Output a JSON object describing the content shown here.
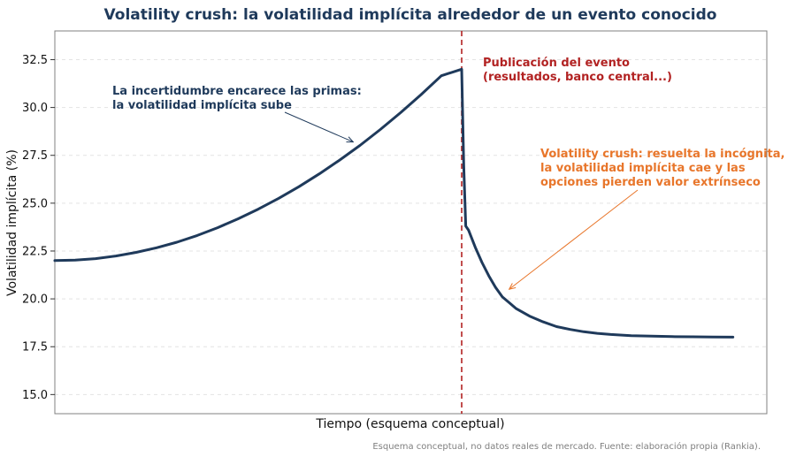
{
  "chart_data": {
    "type": "line",
    "title": "Volatility crush: la volatilidad implícita alrededor de un evento conocido",
    "xlabel": "Tiempo (esquema conceptual)",
    "ylabel": "Volatilidad implícita (%)",
    "ylim": [
      14.0,
      34.0
    ],
    "yticks": [
      "15.0",
      "17.5",
      "20.0",
      "22.5",
      "25.0",
      "27.5",
      "30.0",
      "32.5"
    ],
    "xticks_visible": false,
    "grid": "y-dashed",
    "event_x": 0,
    "xlim": [
      -60,
      45
    ],
    "series": [
      {
        "x": [
          -60,
          -57,
          -54,
          -51,
          -48,
          -45,
          -42,
          -39,
          -36,
          -33,
          -30,
          -27,
          -24,
          -21,
          -18,
          -15,
          -12,
          -9,
          -6,
          -3,
          0,
          0.3,
          0.6,
          1,
          2,
          3,
          4,
          5,
          6,
          7,
          8,
          10,
          12,
          14,
          16,
          18,
          20,
          22,
          25,
          28,
          31,
          34,
          37,
          40
        ],
        "y": [
          22.0,
          22.03,
          22.1,
          22.24,
          22.43,
          22.67,
          22.96,
          23.31,
          23.72,
          24.18,
          24.69,
          25.25,
          25.86,
          26.53,
          27.25,
          28.02,
          28.85,
          29.73,
          30.67,
          31.66,
          32.0,
          27.0,
          23.8,
          23.6,
          22.7,
          21.9,
          21.2,
          20.6,
          20.1,
          19.8,
          19.5,
          19.1,
          18.8,
          18.55,
          18.4,
          18.28,
          18.2,
          18.14,
          18.08,
          18.05,
          18.03,
          18.02,
          18.01,
          18.0
        ],
        "color": "#1f3a5b"
      }
    ],
    "annotations": [
      {
        "key": "rise",
        "lines": [
          "La incertidumbre encarece las primas:",
          "la volatilidad implícita sube"
        ],
        "color": "#1f3a5b",
        "arrow_to": [
          -16,
          28.2
        ]
      },
      {
        "key": "event",
        "lines": [
          "Publicación del evento",
          "(resultados, banco central...)"
        ],
        "color": "#b22222"
      },
      {
        "key": "crush",
        "lines": [
          "Volatility crush: resuelta la incógnita,",
          "la volatilidad implícita cae y las",
          "opciones pierden valor extrínseco"
        ],
        "color": "#e8762b",
        "arrow_to": [
          7,
          20.5
        ]
      }
    ],
    "note": "Esquema conceptual, no datos reales de mercado. Fuente: elaboración propia (Rankia)."
  }
}
